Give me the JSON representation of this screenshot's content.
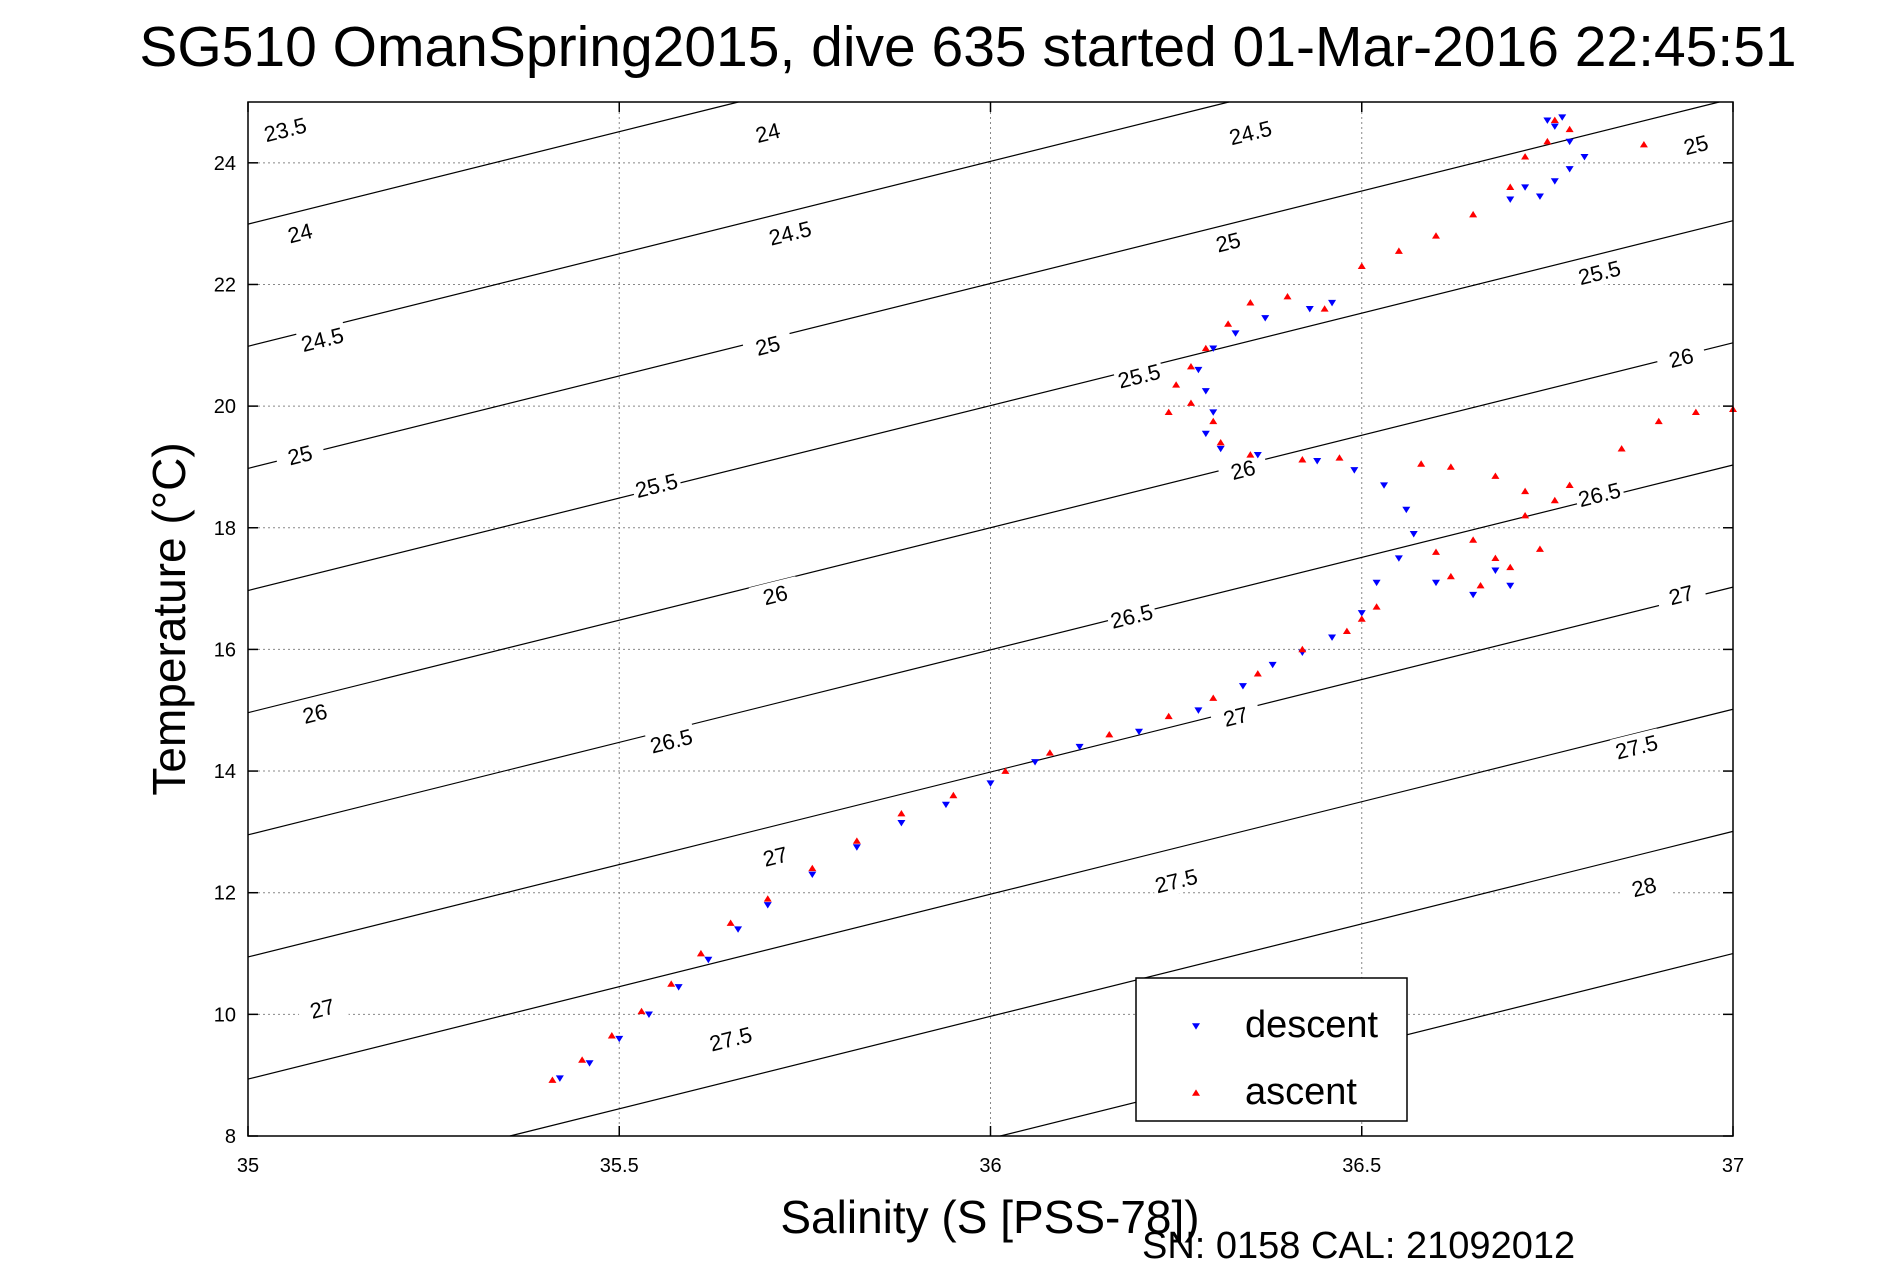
{
  "chart_data": {
    "type": "scatter",
    "title": "SG510 OmanSpring2015, dive 635 started 01-Mar-2016 22:45:51",
    "xlabel": "Salinity (S [PSS-78])",
    "ylabel": "Temperature (°C)",
    "xlim": [
      35,
      37
    ],
    "ylim": [
      8,
      25
    ],
    "x_ticks": [
      35,
      35.5,
      36,
      36.5,
      37
    ],
    "x_tick_labels": [
      "35",
      "35.5",
      "36",
      "36.5",
      "37"
    ],
    "y_ticks": [
      8,
      10,
      12,
      14,
      16,
      18,
      20,
      22,
      24
    ],
    "y_tick_labels": [
      "8",
      "10",
      "12",
      "14",
      "16",
      "18",
      "20",
      "22",
      "24"
    ],
    "grid": true,
    "legend_position": "bottom-right",
    "footer": "SN: 0158  CAL: 21092012",
    "series": [
      {
        "name": "descent",
        "color": "#0000ff",
        "marker": "down-triangle",
        "points": [
          [
            35.42,
            8.95
          ],
          [
            35.46,
            9.2
          ],
          [
            35.5,
            9.6
          ],
          [
            35.54,
            10.0
          ],
          [
            35.58,
            10.45
          ],
          [
            35.62,
            10.9
          ],
          [
            35.66,
            11.4
          ],
          [
            35.7,
            11.8
          ],
          [
            35.76,
            12.3
          ],
          [
            35.82,
            12.75
          ],
          [
            35.88,
            13.15
          ],
          [
            35.94,
            13.45
          ],
          [
            36.0,
            13.8
          ],
          [
            36.06,
            14.15
          ],
          [
            36.12,
            14.4
          ],
          [
            36.2,
            14.65
          ],
          [
            36.28,
            15.0
          ],
          [
            36.34,
            15.4
          ],
          [
            36.38,
            15.75
          ],
          [
            36.42,
            15.95
          ],
          [
            36.46,
            16.2
          ],
          [
            36.5,
            16.6
          ],
          [
            36.52,
            17.1
          ],
          [
            36.55,
            17.5
          ],
          [
            36.57,
            17.9
          ],
          [
            36.56,
            18.3
          ],
          [
            36.53,
            18.7
          ],
          [
            36.49,
            18.95
          ],
          [
            36.44,
            19.1
          ],
          [
            36.36,
            19.2
          ],
          [
            36.31,
            19.3
          ],
          [
            36.29,
            19.55
          ],
          [
            36.3,
            19.9
          ],
          [
            36.29,
            20.25
          ],
          [
            36.28,
            20.6
          ],
          [
            36.3,
            20.95
          ],
          [
            36.33,
            21.2
          ],
          [
            36.37,
            21.45
          ],
          [
            36.43,
            21.6
          ],
          [
            36.46,
            21.7
          ],
          [
            36.6,
            17.1
          ],
          [
            36.65,
            16.9
          ],
          [
            36.68,
            17.3
          ],
          [
            36.7,
            17.05
          ],
          [
            36.7,
            23.4
          ],
          [
            36.72,
            23.6
          ],
          [
            36.74,
            23.45
          ],
          [
            36.76,
            23.7
          ],
          [
            36.78,
            23.9
          ],
          [
            36.8,
            24.1
          ],
          [
            36.78,
            24.35
          ],
          [
            36.76,
            24.6
          ],
          [
            36.75,
            24.7
          ],
          [
            36.77,
            24.75
          ]
        ]
      },
      {
        "name": "ascent",
        "color": "#ff0000",
        "marker": "up-triangle",
        "points": [
          [
            35.41,
            8.92
          ],
          [
            35.45,
            9.25
          ],
          [
            35.49,
            9.65
          ],
          [
            35.53,
            10.05
          ],
          [
            35.57,
            10.5
          ],
          [
            35.61,
            11.0
          ],
          [
            35.65,
            11.5
          ],
          [
            35.7,
            11.9
          ],
          [
            35.76,
            12.4
          ],
          [
            35.82,
            12.85
          ],
          [
            35.88,
            13.3
          ],
          [
            35.95,
            13.6
          ],
          [
            36.02,
            14.0
          ],
          [
            36.08,
            14.3
          ],
          [
            36.16,
            14.6
          ],
          [
            36.24,
            14.9
          ],
          [
            36.3,
            15.2
          ],
          [
            36.36,
            15.6
          ],
          [
            36.42,
            16.0
          ],
          [
            36.48,
            16.3
          ],
          [
            36.5,
            16.5
          ],
          [
            36.52,
            16.7
          ],
          [
            36.47,
            19.15
          ],
          [
            36.42,
            19.12
          ],
          [
            36.35,
            19.2
          ],
          [
            36.31,
            19.4
          ],
          [
            36.3,
            19.75
          ],
          [
            36.27,
            20.05
          ],
          [
            36.24,
            19.9
          ],
          [
            36.25,
            20.35
          ],
          [
            36.27,
            20.65
          ],
          [
            36.29,
            20.95
          ],
          [
            36.32,
            21.35
          ],
          [
            36.35,
            21.7
          ],
          [
            36.4,
            21.8
          ],
          [
            36.45,
            21.6
          ],
          [
            36.5,
            22.3
          ],
          [
            36.55,
            22.55
          ],
          [
            36.6,
            22.8
          ],
          [
            36.65,
            23.15
          ],
          [
            36.7,
            23.6
          ],
          [
            36.72,
            24.1
          ],
          [
            36.75,
            24.35
          ],
          [
            36.78,
            24.55
          ],
          [
            36.76,
            24.7
          ],
          [
            36.58,
            19.05
          ],
          [
            36.62,
            19.0
          ],
          [
            36.68,
            18.85
          ],
          [
            36.72,
            18.6
          ],
          [
            36.76,
            18.45
          ],
          [
            36.78,
            18.7
          ],
          [
            36.72,
            18.2
          ],
          [
            36.65,
            17.8
          ],
          [
            36.6,
            17.6
          ],
          [
            36.68,
            17.5
          ],
          [
            36.74,
            17.65
          ],
          [
            36.62,
            17.2
          ],
          [
            36.66,
            17.05
          ],
          [
            36.7,
            17.35
          ],
          [
            36.85,
            19.3
          ],
          [
            36.9,
            19.75
          ],
          [
            36.95,
            19.9
          ],
          [
            37.0,
            19.95
          ],
          [
            36.88,
            24.3
          ]
        ]
      }
    ],
    "contours": [
      {
        "sigma": 23.5,
        "labels": [
          [
            35.05,
            24.55
          ]
        ]
      },
      {
        "sigma": 24.0,
        "labels": [
          [
            35.07,
            22.85
          ],
          [
            35.7,
            24.5
          ]
        ]
      },
      {
        "sigma": 24.5,
        "labels": [
          [
            35.1,
            21.1
          ],
          [
            35.73,
            22.85
          ],
          [
            36.35,
            24.5
          ]
        ]
      },
      {
        "sigma": 25.0,
        "labels": [
          [
            35.07,
            19.2
          ],
          [
            35.7,
            21.0
          ],
          [
            36.32,
            22.7
          ],
          [
            36.95,
            24.3
          ]
        ]
      },
      {
        "sigma": 25.5,
        "labels": [
          [
            35.55,
            18.7
          ],
          [
            36.2,
            20.5
          ],
          [
            36.82,
            22.2
          ]
        ]
      },
      {
        "sigma": 26.0,
        "labels": [
          [
            35.09,
            14.95
          ],
          [
            35.71,
            16.9
          ],
          [
            36.34,
            18.96
          ],
          [
            36.93,
            20.8
          ]
        ]
      },
      {
        "sigma": 26.5,
        "labels": [
          [
            35.57,
            14.5
          ],
          [
            36.19,
            16.55
          ],
          [
            36.82,
            18.55
          ]
        ]
      },
      {
        "sigma": 27.0,
        "labels": [
          [
            35.1,
            10.1
          ],
          [
            35.71,
            12.6
          ],
          [
            36.33,
            14.9
          ],
          [
            36.93,
            16.9
          ]
        ]
      },
      {
        "sigma": 27.5,
        "labels": [
          [
            35.65,
            9.6
          ],
          [
            36.25,
            12.2
          ],
          [
            36.87,
            14.4
          ]
        ]
      },
      {
        "sigma": 28.0,
        "labels": [
          [
            36.88,
            12.1
          ]
        ]
      }
    ]
  }
}
